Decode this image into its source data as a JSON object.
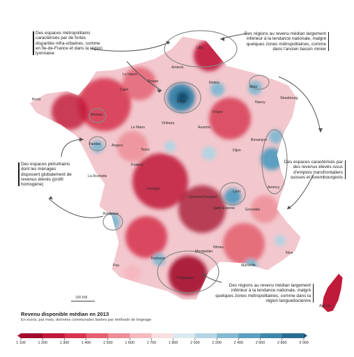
{
  "annotations": {
    "top_left": "Des espaces métropolitains caractérisés par de fortes disparités infra-urbaines, comme en Île-de-France et dans la région lyonnaise",
    "top_right": "Des régions au revenu médian largement inférieur à la tendance nationale, malgré quelques zones métropolitaines, comme dans l'ancien bassin minier",
    "mid_left": "Des espaces périurbains dont les ménages disposent globalement de revenus élevés (profil homogène)",
    "mid_right": "Des espaces caractérisés par des revenus élevés issus d'emplois transfrontaliers suisses et luxembourgeois",
    "bottom_right": "Des régions au revenu médian largement inférieur à la tendance nationale, malgré quelques zones métropolitaines, comme dans la région languedocienne"
  },
  "cities": [
    "Lille",
    "Le Havre",
    "Amiens",
    "Rouen",
    "Caen",
    "Reims",
    "Metz",
    "Nancy",
    "Strasbourg",
    "Paris",
    "Brest",
    "Rennes",
    "Le Mans",
    "Orléans",
    "Troyes",
    "Auxerre",
    "Nantes",
    "Angers",
    "Tours",
    "Dijon",
    "Besançon",
    "Poitiers",
    "La Rochelle",
    "Limoges",
    "Clermont-Ferrand",
    "Lyon",
    "Annecy",
    "Saint-Étienne",
    "Grenoble",
    "Bordeaux",
    "Montpellier",
    "Nîmes",
    "Toulouse",
    "Nice",
    "Marseille",
    "Pau",
    "Perpignan",
    "Ajaccio"
  ],
  "scale_label": "100 KM",
  "legend": {
    "title": "Revenu disponible médian en 2013",
    "subtitle": "En euros, par mois, données communales lissées par méthode de krigeage",
    "ticks": [
      "1 100",
      "1 200",
      "1 300",
      "1 400",
      "1 500",
      "1 600",
      "1 700",
      "1 800",
      "2 000",
      "2 200",
      "2 400",
      "2 600",
      "2 800",
      "3 000"
    ],
    "colors": [
      "#a3092d",
      "#c01a3a",
      "#d6334d",
      "#e45f6f",
      "#ee8c96",
      "#f5b8bf",
      "#f8dfe2",
      "#dae9ef",
      "#b5d4e2",
      "#86b9d1",
      "#5c9fc0",
      "#3f86ab",
      "#276d92",
      "#14506f"
    ]
  },
  "colors": {
    "low": "#c0193a",
    "high": "#4d90b6",
    "land": "#f2c7cd",
    "border": "#ffffff"
  }
}
